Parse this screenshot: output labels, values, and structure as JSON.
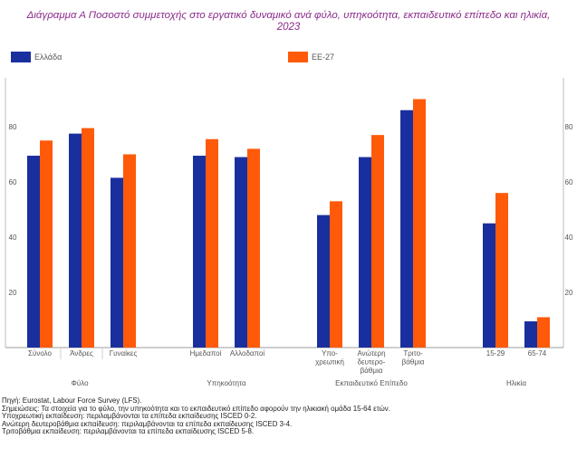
{
  "title_lines": [
    "Διάγραμμα Α Ποσοστό συμμετοχής στο εργατικό δυναμικό ανά φύλο, υπηκοότητα, εκπαιδευτικό επίπεδο και ηλικία,",
    "2023"
  ],
  "legend": {
    "greece": "Ελλάδα",
    "eu": "ΕΕ-27"
  },
  "colors": {
    "greece": "#1a2f9e",
    "eu": "#ff5a0a",
    "title": "#8b2a8b",
    "axis": "#555555"
  },
  "chart_data": {
    "type": "bar",
    "ylim": [
      0,
      100
    ],
    "yticks": [
      20,
      40,
      60,
      80
    ],
    "categories": [
      [
        "Σύνολο"
      ],
      [
        "Άνδρες"
      ],
      [
        "Γυναίκες"
      ],
      [
        "Ημεδαποί"
      ],
      [
        "Αλλοδαποί"
      ],
      [
        "Υπο-",
        "χρεωτική"
      ],
      [
        "Ανώτερη",
        "δευτερο-",
        "βάθμια"
      ],
      [
        "Τριτο-",
        "βάθμια"
      ],
      [
        "15-29"
      ],
      [
        "65-74"
      ]
    ],
    "group_labels": [
      "Φύλο",
      "Υπηκοότητα",
      "Εκπαιδευτικό Επίπεδο",
      "Ηλικία"
    ],
    "series": [
      {
        "name": "Ελλάδα",
        "values": [
          69.5,
          77.5,
          61.5,
          69.5,
          69,
          48,
          69,
          86,
          45,
          9.5
        ]
      },
      {
        "name": "ΕΕ-27",
        "values": [
          75,
          79.5,
          70,
          75.5,
          72,
          53,
          77,
          90,
          56,
          11
        ]
      }
    ]
  },
  "notes": [
    "Πηγή: Eurostat, Labour Force Survey (LFS).",
    "Σημειώσεις: Τα στοιχεία για το φύλο, την υπηκοότητα και το εκπαιδευτικό επίπεδο αφορούν την ηλικιακή ομάδα 15-64 ετών.",
    "Υποχρεωτική εκπαίδευση: περιλαμβάνονται τα επίπεδα εκπαίδευσης ISCED 0-2.",
    "Ανώτερη δευτεροβάθμια εκπαίδευση: περιλαμβάνονται τα επίπεδα εκπαίδευσης ISCED 3-4.",
    "Τριτοβάθμια εκπαίδευση: περιλαμβάνονται τα επίπεδα εκπαίδευσης ISCED 5-8."
  ]
}
